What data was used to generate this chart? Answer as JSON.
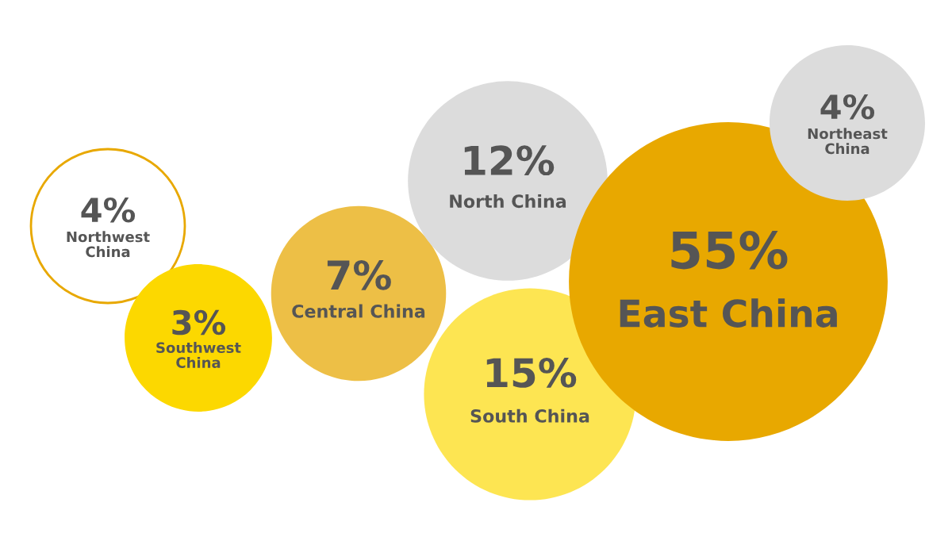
{
  "chart_data": {
    "type": "other",
    "categories": [
      "Northwest China",
      "Southwest China",
      "Central China",
      "North China",
      "South China",
      "East China",
      "Northeast China"
    ],
    "values": [
      4,
      3,
      7,
      12,
      15,
      55,
      4
    ],
    "value_labels": [
      "4%",
      "3%",
      "7%",
      "12%",
      "15%",
      "55%",
      "4%"
    ],
    "colors": [
      "#e8a800",
      "#fcd800",
      "#ebb832",
      "#dcdcdc",
      "#fde23f",
      "#e8a800",
      "#dcdcdc"
    ]
  }
}
